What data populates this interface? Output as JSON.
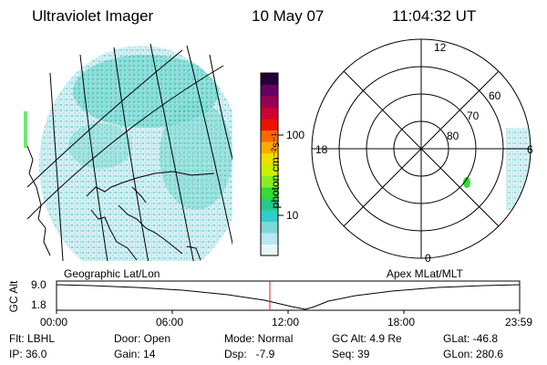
{
  "header": {
    "title": "Ultraviolet Imager",
    "date": "10 May 07",
    "time": "11:04:32 UT"
  },
  "colorbar": {
    "unit_label": "photon cm⁻²s⁻¹",
    "ticks": [
      "100",
      "10"
    ],
    "colors": [
      "#e8f6fb",
      "#b8e8f0",
      "#7fd8d8",
      "#33cccc",
      "#22cc88",
      "#33dd33",
      "#88ee22",
      "#ccee00",
      "#eedd00",
      "#ffaa00",
      "#ff6600",
      "#ee1100",
      "#cc0033",
      "#990055",
      "#660066",
      "#220033"
    ]
  },
  "left_panel": {
    "label": "Geographic Lat/Lon"
  },
  "polar_panel": {
    "label": "Apex MLat/MLT",
    "hour_labels": {
      "top": "12",
      "left": "18",
      "right": "6",
      "bottom": "0"
    },
    "lat_labels": [
      "60",
      "70",
      "80"
    ]
  },
  "altitude_plot": {
    "ylabel": "GC Alt",
    "yticks": [
      "9.0",
      "1.8"
    ],
    "xticks": [
      "00:00",
      "06:00",
      "12:00",
      "18:00",
      "23:59"
    ],
    "marker_time": "11:04"
  },
  "status": {
    "flt": "Flt: LBHL",
    "door": "Door: Open",
    "mode": "Mode: Normal",
    "gcalt": "GC Alt: 4.9 Re",
    "glat": "GLat: -46.8",
    "ip": "IP: 36.0",
    "gain": "Gain: 14",
    "dsp": "Dsp:   -7.9",
    "seq": "Seq: 39",
    "glon": "GLon: 280.6"
  }
}
